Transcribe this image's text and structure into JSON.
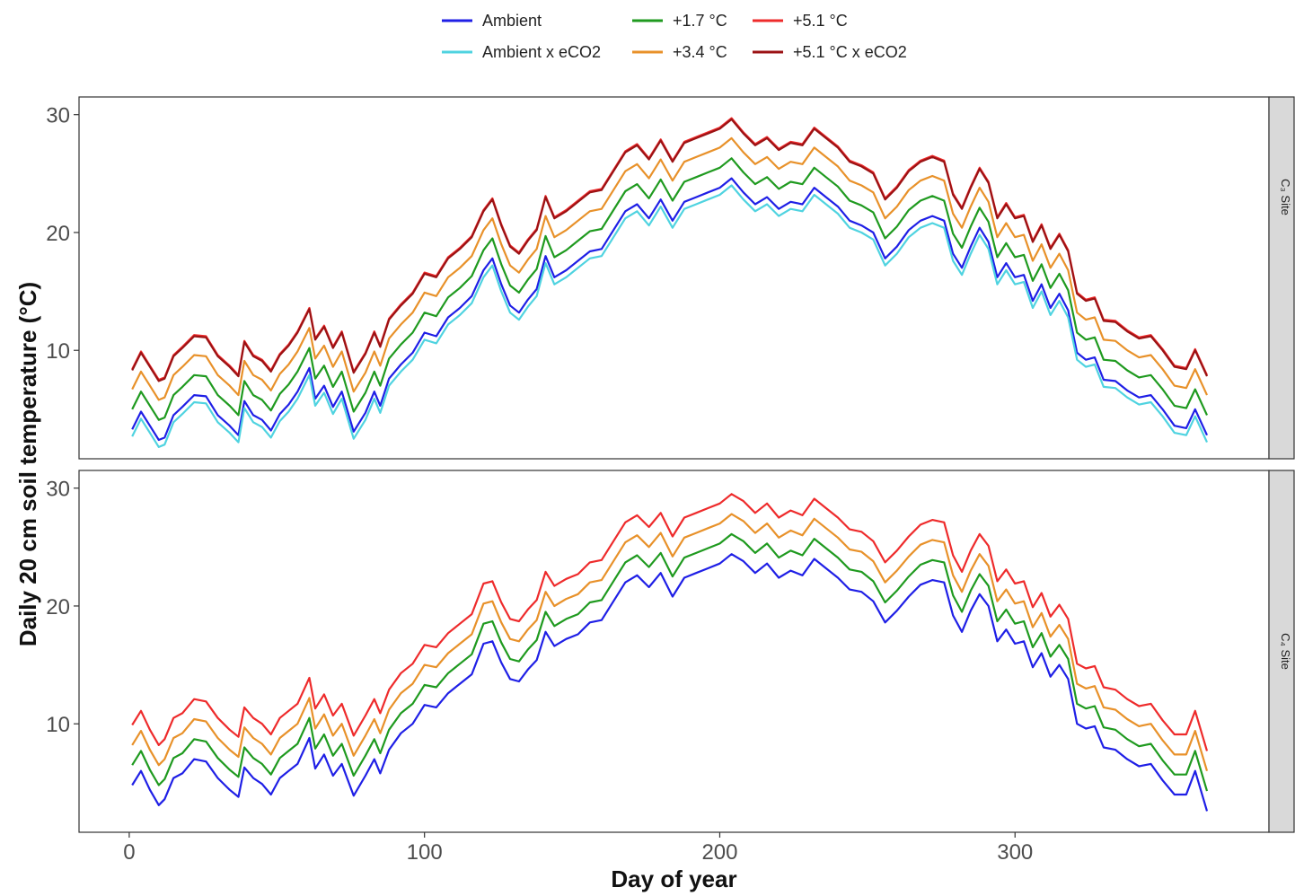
{
  "chart_data": {
    "type": "line",
    "xlabel": "Day of year",
    "ylabel": "Daily 20 cm soil temperature (°C)",
    "xlim": [
      -17,
      386
    ],
    "ylim": [
      0.8,
      31.5
    ],
    "xticks": [
      0,
      100,
      200,
      300
    ],
    "yticks": [
      10,
      20,
      30
    ],
    "grid": false,
    "legend_position": "top",
    "legend": [
      {
        "key": "ambient",
        "label": "Ambient",
        "color": "#1f1fe6"
      },
      {
        "key": "ambient_eco2",
        "label": "Ambient x eCO2",
        "color": "#4fd3e0"
      },
      {
        "key": "w17",
        "label": "+1.7 °C",
        "color": "#1f9a1f"
      },
      {
        "key": "w34",
        "label": "+3.4 °C",
        "color": "#e8912a"
      },
      {
        "key": "w51",
        "label": "+5.1 °C",
        "color": "#ee2b2b"
      },
      {
        "key": "w51_eco2",
        "label": "+5.1 °C x eCO2",
        "color": "#9b1214"
      }
    ],
    "panels": [
      {
        "strip": "C₃ Site",
        "series": [
          {
            "key": "ambient",
            "offset": 0.0
          },
          {
            "key": "ambient_eco2",
            "offset": -0.6
          },
          {
            "key": "w17",
            "offset": 1.7
          },
          {
            "key": "w34",
            "offset": 3.4
          },
          {
            "key": "w51",
            "offset": 5.1
          },
          {
            "key": "w51_eco2",
            "offset": 5.0
          }
        ],
        "base": {
          "x": [
            1,
            4,
            7,
            10,
            12,
            15,
            18,
            22,
            26,
            30,
            34,
            37,
            39,
            42,
            45,
            48,
            51,
            54,
            57,
            61,
            63,
            66,
            69,
            72,
            76,
            80,
            83,
            85,
            88,
            92,
            96,
            100,
            104,
            108,
            112,
            116,
            120,
            123,
            126,
            129,
            132,
            135,
            138,
            141,
            144,
            148,
            152,
            156,
            160,
            164,
            168,
            172,
            176,
            180,
            184,
            188,
            192,
            196,
            200,
            204,
            208,
            212,
            216,
            220,
            224,
            228,
            232,
            236,
            240,
            244,
            248,
            252,
            256,
            260,
            264,
            268,
            272,
            276,
            279,
            282,
            285,
            288,
            291,
            294,
            297,
            300,
            303,
            306,
            309,
            312,
            315,
            318,
            321,
            324,
            327,
            330,
            334,
            338,
            342,
            346,
            350,
            354,
            358,
            361,
            365
          ],
          "y": [
            3.3,
            4.8,
            3.6,
            2.4,
            2.6,
            4.5,
            5.2,
            6.2,
            6.1,
            4.5,
            3.6,
            2.8,
            5.7,
            4.5,
            4.1,
            3.2,
            4.6,
            5.4,
            6.5,
            8.5,
            5.9,
            7.0,
            5.2,
            6.5,
            3.1,
            4.7,
            6.5,
            5.3,
            7.6,
            8.8,
            9.8,
            11.5,
            11.2,
            12.8,
            13.6,
            14.6,
            16.8,
            17.8,
            15.6,
            13.8,
            13.2,
            14.3,
            15.2,
            18.0,
            16.2,
            16.8,
            17.6,
            18.4,
            18.6,
            20.2,
            21.8,
            22.4,
            21.2,
            22.8,
            21.0,
            22.6,
            23.0,
            23.4,
            23.8,
            24.6,
            23.4,
            22.4,
            23.0,
            22.0,
            22.6,
            22.4,
            23.8,
            23.0,
            22.2,
            21.0,
            20.6,
            20.0,
            17.8,
            18.8,
            20.2,
            21.0,
            21.4,
            21.0,
            18.2,
            17.0,
            18.8,
            20.4,
            19.2,
            16.2,
            17.4,
            16.2,
            16.4,
            14.2,
            15.6,
            13.6,
            14.8,
            13.4,
            9.8,
            9.2,
            9.4,
            7.5,
            7.4,
            6.6,
            6.0,
            6.2,
            5.0,
            3.6,
            3.4,
            5.0,
            2.8
          ]
        }
      },
      {
        "strip": "C₄ Site",
        "series": [
          {
            "key": "ambient",
            "offset": 0.0
          },
          {
            "key": "w17",
            "offset": 1.7
          },
          {
            "key": "w34",
            "offset": 3.4
          },
          {
            "key": "w51",
            "offset": 5.1
          }
        ],
        "base": {
          "x": [
            1,
            4,
            7,
            10,
            12,
            15,
            18,
            22,
            26,
            30,
            34,
            37,
            39,
            42,
            45,
            48,
            51,
            54,
            57,
            61,
            63,
            66,
            69,
            72,
            76,
            80,
            83,
            85,
            88,
            92,
            96,
            100,
            104,
            108,
            112,
            116,
            120,
            123,
            126,
            129,
            132,
            135,
            138,
            141,
            144,
            148,
            152,
            156,
            160,
            164,
            168,
            172,
            176,
            180,
            184,
            188,
            192,
            196,
            200,
            204,
            208,
            212,
            216,
            220,
            224,
            228,
            232,
            236,
            240,
            244,
            248,
            252,
            256,
            260,
            264,
            268,
            272,
            276,
            279,
            282,
            285,
            288,
            291,
            294,
            297,
            300,
            303,
            306,
            309,
            312,
            315,
            318,
            321,
            324,
            327,
            330,
            334,
            338,
            342,
            346,
            350,
            354,
            358,
            361,
            365
          ],
          "y": [
            4.8,
            6.0,
            4.4,
            3.1,
            3.6,
            5.4,
            5.8,
            7.0,
            6.8,
            5.4,
            4.4,
            3.8,
            6.3,
            5.4,
            4.9,
            4.0,
            5.4,
            6.0,
            6.6,
            8.8,
            6.2,
            7.4,
            5.6,
            6.6,
            3.9,
            5.6,
            7.0,
            5.8,
            7.8,
            9.2,
            10.0,
            11.6,
            11.4,
            12.6,
            13.4,
            14.2,
            16.8,
            17.0,
            15.2,
            13.8,
            13.6,
            14.6,
            15.4,
            17.8,
            16.6,
            17.2,
            17.6,
            18.6,
            18.8,
            20.4,
            22.0,
            22.6,
            21.6,
            22.8,
            20.8,
            22.4,
            22.8,
            23.2,
            23.6,
            24.4,
            23.8,
            22.8,
            23.6,
            22.4,
            23.0,
            22.6,
            24.0,
            23.2,
            22.4,
            21.4,
            21.2,
            20.4,
            18.6,
            19.6,
            20.8,
            21.8,
            22.2,
            22.0,
            19.2,
            17.8,
            19.6,
            21.0,
            20.0,
            17.0,
            18.0,
            16.8,
            17.0,
            14.8,
            16.0,
            14.0,
            15.0,
            13.8,
            10.0,
            9.6,
            9.8,
            8.0,
            7.8,
            7.0,
            6.4,
            6.6,
            5.2,
            4.0,
            4.0,
            6.0,
            2.6
          ]
        }
      }
    ]
  }
}
